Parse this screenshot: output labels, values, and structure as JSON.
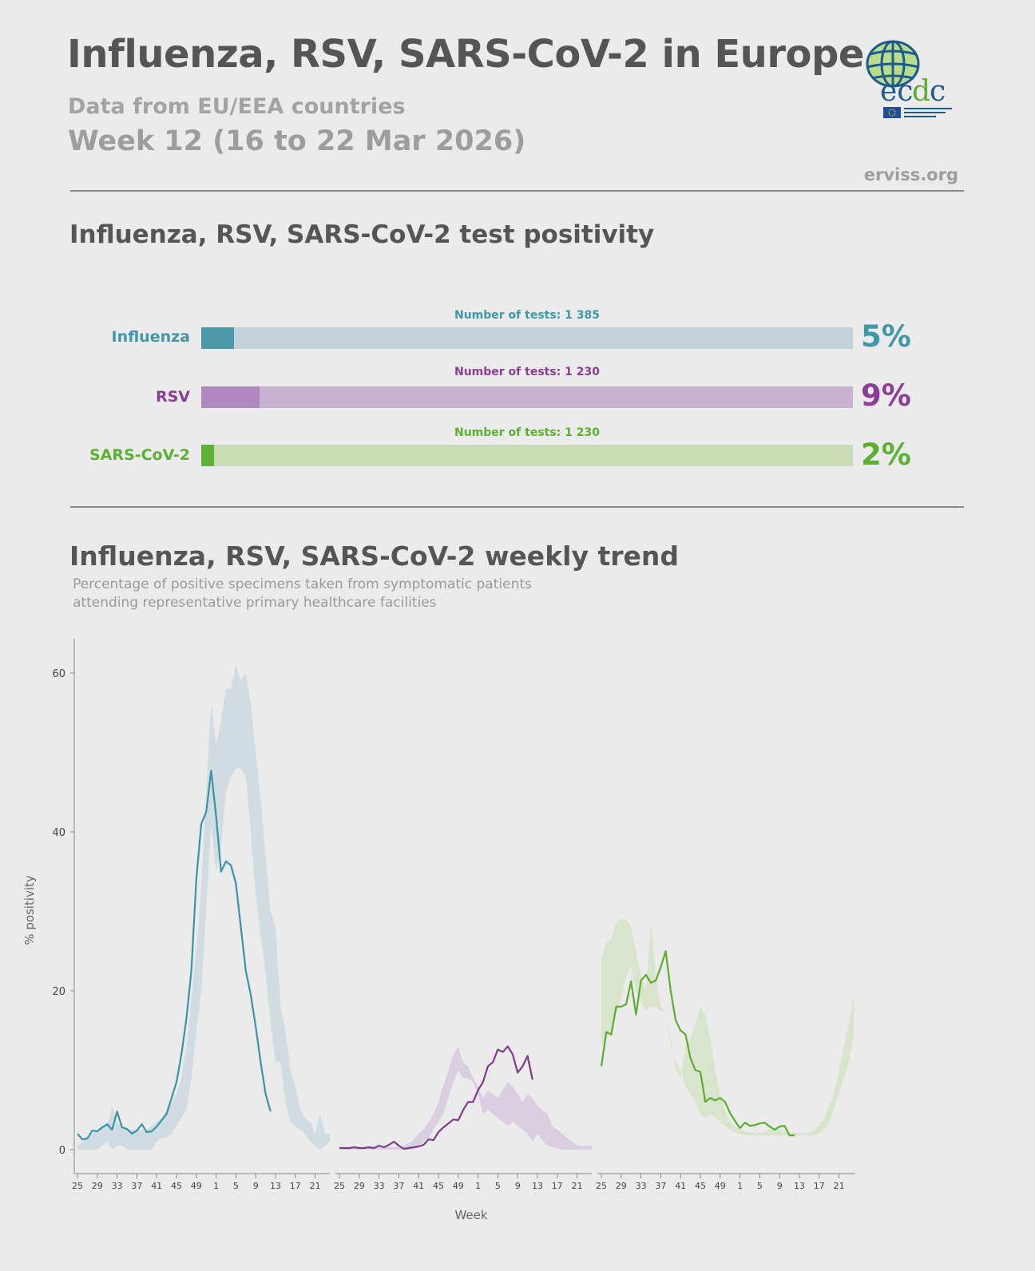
{
  "header": {
    "title": "Influenza, RSV, SARS-CoV-2 in Europe",
    "subtitle": "Data from EU/EEA countries",
    "week": "Week 12 (16 to 22 Mar 2026)",
    "site": "erviss.org",
    "logo": {
      "text": "ecdc",
      "tagline": "EUROPEAN CENTRE FOR DISEASE PREVENTION AND CONTROL"
    }
  },
  "positivity": {
    "title": "Influenza, RSV, SARS-CoV-2 test positivity",
    "rows": [
      {
        "label": "Influenza",
        "tests": "Number of tests: 1 385",
        "percent": "5%",
        "value": 5,
        "color": "#3f97a8",
        "fill": "#4a98a8",
        "track": "#c3d1d9"
      },
      {
        "label": "RSV",
        "tests": "Number of tests: 1 230",
        "percent": "9%",
        "value": 9,
        "color": "#8b3d95",
        "fill": "#b088bd",
        "track": "#c8b2d2"
      },
      {
        "label": "SARS-CoV-2",
        "tests": "Number of tests: 1 230",
        "percent": "2%",
        "value": 2,
        "color": "#5ab031",
        "fill": "#5db336",
        "track": "#c9dcb5"
      }
    ]
  },
  "trend": {
    "title": "Influenza, RSV, SARS-CoV-2 weekly trend",
    "description_1": "Percentage of positive specimens taken from symptomatic patients",
    "description_2": "attending representative primary healthcare facilities"
  },
  "chart_data": {
    "type": "line",
    "ylabel": "% positivity",
    "xlabel": "Week",
    "ylim": [
      0,
      62
    ],
    "yticks": [
      "0",
      "20",
      "40",
      "60"
    ],
    "xtick_labels": [
      "25",
      "29",
      "33",
      "37",
      "41",
      "45",
      "49",
      "1",
      "5",
      "9",
      "13",
      "17",
      "21"
    ],
    "weeks_start": 25,
    "grid": false,
    "series": [
      {
        "color": "#3a94a6",
        "band_color": "#cdd9e1",
        "values": [
          2.0,
          1.3,
          1.4,
          2.4,
          2.3,
          2.8,
          3.2,
          2.5,
          4.8,
          2.8,
          2.6,
          2.0,
          2.4,
          3.2,
          2.2,
          2.3,
          2.9,
          3.7,
          4.5,
          6.5,
          8.5,
          12,
          16.5,
          22.5,
          34,
          41,
          42.5,
          47.7,
          42,
          35,
          36.3,
          35.8,
          33.5,
          28,
          22.5,
          19.5,
          15.5,
          11,
          7,
          4.8
        ],
        "band_upper": [
          0.5,
          1,
          1.5,
          2,
          2.5,
          3,
          3,
          5.5,
          3.5,
          3,
          2.5,
          2.5,
          2.5,
          2.5,
          2.5,
          3,
          3.5,
          4,
          5,
          6,
          7,
          9,
          13,
          19,
          25,
          33,
          45,
          56,
          51,
          54,
          58,
          58,
          61,
          59,
          60,
          56,
          50,
          44,
          37,
          30,
          28,
          18,
          15,
          10,
          8,
          5,
          4,
          3.5,
          2,
          4.5,
          2,
          2
        ],
        "band_lower": [
          0,
          0,
          0,
          0,
          0,
          0.5,
          1,
          0,
          0.5,
          0.5,
          0,
          0,
          0,
          0,
          0,
          0,
          1,
          1.5,
          1.5,
          2,
          3,
          4,
          5,
          9,
          15,
          20,
          30,
          41,
          35,
          38,
          45,
          47,
          48,
          48,
          47,
          40,
          32,
          27,
          22,
          16,
          11,
          11,
          6,
          3.5,
          3,
          2.5,
          2,
          1,
          0.5,
          0,
          0.5,
          1
        ]
      },
      {
        "color": "#7f3a8c",
        "band_color": "#d8cbe0",
        "values": [
          0.2,
          0.2,
          0.2,
          0.3,
          0.2,
          0.2,
          0.3,
          0.2,
          0.5,
          0.3,
          0.6,
          1.0,
          0.5,
          0.1,
          0.2,
          0.3,
          0.4,
          0.6,
          1.3,
          1.2,
          2.2,
          2.8,
          3.3,
          3.8,
          3.7,
          5.0,
          6.0,
          6.0,
          7.5,
          8.5,
          10.5,
          11.0,
          12.6,
          12.3,
          13.0,
          12.0,
          9.7,
          10.5,
          11.8,
          8.8
        ],
        "band_upper": [
          0.3,
          0.3,
          0.3,
          0.3,
          0.3,
          0.3,
          0.3,
          0.3,
          0.3,
          0.3,
          0.3,
          0.3,
          0.3,
          0.5,
          0.8,
          1.2,
          2,
          2.5,
          3.5,
          4.5,
          6,
          8,
          10,
          12,
          13,
          11,
          10.5,
          9,
          8,
          6.5,
          7.5,
          7,
          6.5,
          7.5,
          8.5,
          8,
          7,
          6,
          7,
          6.5,
          5.5,
          5,
          4.5,
          3,
          2.5,
          2,
          1.5,
          1,
          0.5,
          0.5,
          0.5,
          0.5
        ],
        "band_lower": [
          0,
          0,
          0,
          0,
          0,
          0,
          0,
          0,
          0,
          0,
          0,
          0,
          0,
          0,
          0,
          0,
          0.5,
          1,
          1.5,
          2.5,
          3.5,
          4.5,
          6.5,
          8.5,
          10,
          9,
          9,
          8.5,
          7,
          4.5,
          5,
          4.5,
          4,
          3.5,
          3,
          3.5,
          3,
          2.5,
          2,
          1,
          2,
          1.2,
          0.5,
          0.3,
          0.2,
          0,
          0,
          0,
          0,
          0,
          0,
          0
        ]
      },
      {
        "color": "#5aad2e",
        "band_color": "#d6e4c9",
        "values": [
          10.5,
          14.8,
          14.5,
          18,
          18,
          18.3,
          21.2,
          17,
          21.3,
          22,
          21,
          21.3,
          23,
          25,
          20,
          16.3,
          15,
          14.5,
          11.5,
          10,
          9.8,
          6,
          6.5,
          6.2,
          6.5,
          6,
          4.6,
          3.6,
          2.7,
          3.4,
          3,
          3.1,
          3.3,
          3.4,
          2.9,
          2.5,
          2.9,
          3,
          1.8,
          1.8
        ],
        "band_upper": [
          24,
          26,
          26.5,
          28.5,
          29,
          29,
          28,
          25,
          22,
          20,
          28.5,
          22,
          18,
          17,
          14,
          10,
          9,
          13,
          14,
          16,
          18,
          17,
          14,
          10,
          7,
          5,
          3.5,
          2.8,
          2.5,
          2.3,
          2.2,
          2.1,
          2.1,
          2.2,
          2.5,
          2.5,
          2.5,
          2.2,
          2.1,
          2.2,
          2.1,
          2.1,
          2.2,
          2.5,
          3,
          4,
          5.5,
          7,
          10,
          13,
          16,
          19.5
        ],
        "band_lower": [
          13,
          14,
          15,
          17,
          19,
          22,
          23,
          20,
          18.5,
          17.5,
          18,
          18,
          17.5,
          17.2,
          13,
          11,
          10,
          8,
          7,
          6,
          4.5,
          4,
          4.5,
          4,
          3.5,
          3,
          2.5,
          2.2,
          2,
          1.8,
          1.8,
          1.8,
          1.8,
          1.8,
          1.8,
          1.8,
          1.8,
          1.8,
          1.8,
          1.8,
          1.8,
          1.8,
          1.8,
          1.8,
          2,
          2.5,
          3.5,
          5,
          7,
          9,
          11,
          14.5
        ]
      }
    ]
  }
}
